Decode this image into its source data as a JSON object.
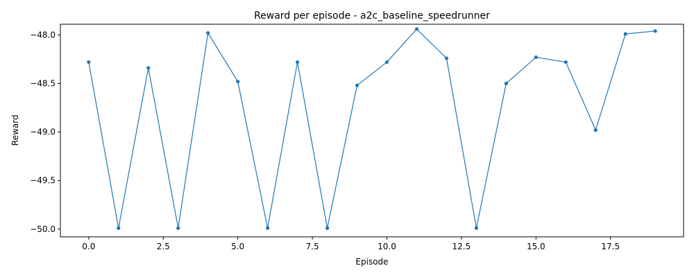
{
  "chart_data": {
    "type": "line",
    "title": "Reward per episode - a2c_baseline_speedrunner",
    "xlabel": "Episode",
    "ylabel": "Reward",
    "xlim": [
      -0.95,
      19.95
    ],
    "ylim": [
      -50.08,
      -47.89
    ],
    "xticks": [
      0.0,
      2.5,
      5.0,
      7.5,
      10.0,
      12.5,
      15.0,
      17.5
    ],
    "xtick_labels": [
      "0.0",
      "2.5",
      "5.0",
      "7.5",
      "10.0",
      "12.5",
      "15.0",
      "17.5"
    ],
    "yticks": [
      -48.0,
      -48.5,
      -49.0,
      -49.5,
      -50.0
    ],
    "ytick_labels": [
      "−48.0",
      "−48.5",
      "−49.0",
      "−49.5",
      "−50.0"
    ],
    "grid": false,
    "series": [
      {
        "color": "#1f77b4",
        "marker": "dot",
        "x": [
          0,
          1,
          2,
          3,
          4,
          5,
          6,
          7,
          8,
          9,
          10,
          11,
          12,
          13,
          14,
          15,
          16,
          17,
          18,
          19
        ],
        "y": [
          -48.28,
          -49.99,
          -48.34,
          -49.99,
          -47.98,
          -48.48,
          -49.99,
          -48.28,
          -49.99,
          -48.52,
          -48.28,
          -47.94,
          -48.24,
          -49.99,
          -48.5,
          -48.23,
          -48.28,
          -48.98,
          -47.99,
          -47.96
        ]
      }
    ]
  }
}
